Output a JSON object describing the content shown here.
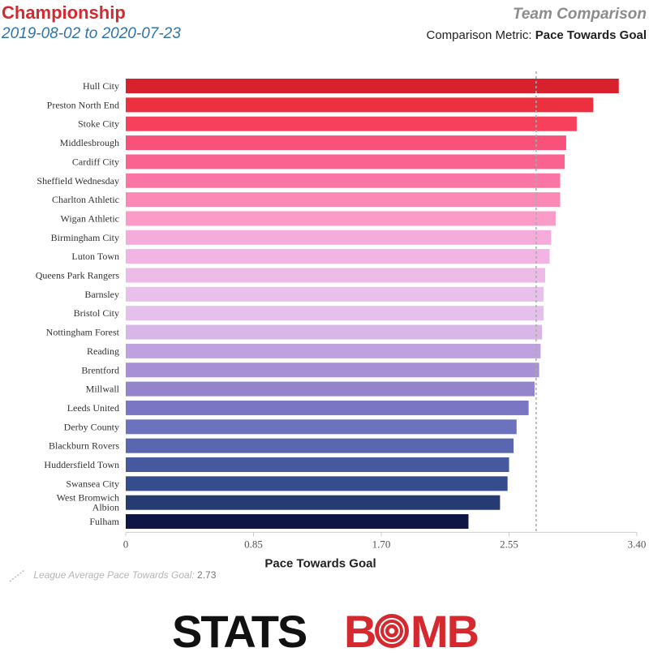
{
  "header": {
    "competition": "Championship",
    "date_range": "2019-08-02 to 2020-07-23",
    "comparison_title": "Team Comparison",
    "metric_prefix": "Comparison Metric:",
    "metric_name": "Pace Towards Goal"
  },
  "chart_data": {
    "type": "bar",
    "orientation": "horizontal",
    "xlabel": "Pace Towards Goal",
    "xlim": [
      0,
      3.4
    ],
    "xticks": [
      "0",
      "0.85",
      "1.70",
      "2.55",
      "3.40"
    ],
    "xtick_values": [
      0,
      0.85,
      1.7,
      2.55,
      3.4
    ],
    "categories": [
      "Hull City",
      "Preston North End",
      "Stoke City",
      "Middlesbrough",
      "Cardiff City",
      "Sheffield Wednesday",
      "Charlton Athletic",
      "Wigan Athletic",
      "Birmingham City",
      "Luton Town",
      "Queens Park Rangers",
      "Barnsley",
      "Bristol City",
      "Nottingham Forest",
      "Reading",
      "Brentford",
      "Millwall",
      "Leeds United",
      "Derby County",
      "Blackburn Rovers",
      "Huddersfield Town",
      "Swansea City",
      "West Bromwich Albion",
      "Fulham"
    ],
    "label_lines": [
      [
        "Hull City"
      ],
      [
        "Preston North End"
      ],
      [
        "Stoke City"
      ],
      [
        "Middlesbrough"
      ],
      [
        "Cardiff City"
      ],
      [
        "Sheffield Wednesday"
      ],
      [
        "Charlton Athletic"
      ],
      [
        "Wigan Athletic"
      ],
      [
        "Birmingham City"
      ],
      [
        "Luton Town"
      ],
      [
        "Queens Park Rangers"
      ],
      [
        "Barnsley"
      ],
      [
        "Bristol City"
      ],
      [
        "Nottingham Forest"
      ],
      [
        "Reading"
      ],
      [
        "Brentford"
      ],
      [
        "Millwall"
      ],
      [
        "Leeds United"
      ],
      [
        "Derby County"
      ],
      [
        "Blackburn Rovers"
      ],
      [
        "Huddersfield Town"
      ],
      [
        "Swansea City"
      ],
      [
        "West Bromwich",
        "Albion"
      ],
      [
        "Fulham"
      ]
    ],
    "values": [
      3.28,
      3.11,
      3.0,
      2.93,
      2.92,
      2.89,
      2.89,
      2.86,
      2.83,
      2.82,
      2.79,
      2.78,
      2.78,
      2.77,
      2.76,
      2.75,
      2.72,
      2.68,
      2.6,
      2.58,
      2.55,
      2.54,
      2.49,
      2.28
    ],
    "colors": [
      "#d7222e",
      "#ec303f",
      "#f6405c",
      "#f9527a",
      "#fa6390",
      "#fb75a4",
      "#fc88b6",
      "#fb9cc8",
      "#f6acda",
      "#f1b4e3",
      "#ecbbe8",
      "#e9c0eb",
      "#e5c0ed",
      "#d9b6e8",
      "#bda2df",
      "#a890d6",
      "#9484cc",
      "#7b76c3",
      "#6c72bd",
      "#5b66b1",
      "#46599f",
      "#354c8d",
      "#263a74",
      "#0f1544"
    ],
    "reference_line": {
      "value": 2.73,
      "style": "dashed",
      "color": "#aaaaaa"
    },
    "grid": false
  },
  "footnote": {
    "label": "League Average Pace Towards Goal:",
    "value": "2.73"
  },
  "logo": {
    "left": "STATS",
    "right": "BMB",
    "left_color": "#111111",
    "right_color": "#d42a2f"
  }
}
